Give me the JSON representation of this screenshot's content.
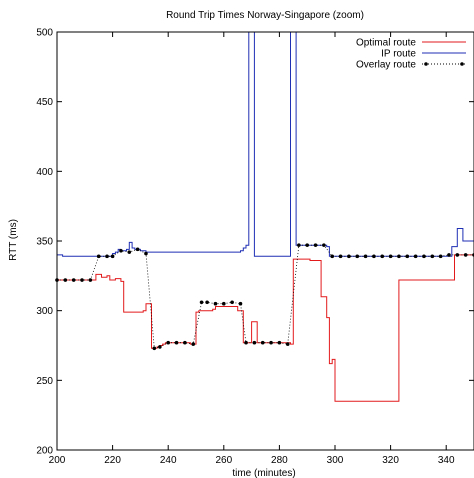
{
  "chart_data": {
    "type": "line",
    "title": "Round Trip Times Norway-Singapore (zoom)",
    "xlabel": "time (minutes)",
    "ylabel": "RTT (ms)",
    "xlim": [
      200,
      350
    ],
    "ylim": [
      200,
      500
    ],
    "xticks": [
      200,
      220,
      240,
      260,
      280,
      300,
      320,
      340
    ],
    "yticks": [
      200,
      250,
      300,
      350,
      400,
      450,
      500
    ],
    "grid": false,
    "legend_position": "top-right",
    "series": [
      {
        "name": "Optimal route",
        "color": "#e31a1c",
        "style": "solid",
        "x": [
          200,
          201,
          202,
          203,
          204,
          205,
          206,
          207,
          208,
          209,
          210,
          211,
          212,
          213,
          214,
          215,
          216,
          217,
          218,
          219,
          220,
          221,
          222,
          223,
          224,
          225,
          226,
          227,
          228,
          229,
          230,
          231,
          232,
          233,
          234,
          235,
          236,
          237,
          238,
          239,
          240,
          241,
          242,
          243,
          244,
          245,
          246,
          247,
          248,
          249,
          250,
          251,
          252,
          253,
          254,
          255,
          256,
          257,
          258,
          259,
          260,
          261,
          262,
          263,
          264,
          265,
          266,
          267,
          268,
          269,
          270,
          271,
          272,
          273,
          274,
          275,
          276,
          277,
          278,
          279,
          280,
          281,
          282,
          283,
          284,
          285,
          286,
          287,
          288,
          289,
          290,
          291,
          292,
          293,
          294,
          295,
          296,
          297,
          298,
          299,
          300,
          301,
          302,
          303,
          304,
          305,
          306,
          307,
          308,
          309,
          310,
          311,
          312,
          313,
          314,
          315,
          316,
          317,
          318,
          319,
          320,
          321,
          322,
          323,
          324,
          325,
          326,
          327,
          328,
          329,
          330,
          331,
          332,
          333,
          334,
          335,
          336,
          337,
          338,
          339,
          340,
          341,
          342,
          343,
          344,
          345,
          346,
          347,
          348,
          349,
          350
        ],
        "y": [
          322,
          322,
          322,
          322,
          322,
          322,
          322,
          322,
          322,
          322,
          322,
          322,
          322,
          322,
          326,
          326,
          324,
          324,
          325,
          322,
          322,
          323,
          323,
          321,
          299,
          299,
          299,
          299,
          299,
          299,
          299,
          300,
          305,
          305,
          273,
          273,
          274,
          275,
          276,
          277,
          277,
          277,
          277,
          277,
          277,
          277,
          277,
          277,
          276,
          276,
          299,
          300,
          300,
          300,
          300,
          300,
          301,
          303,
          303,
          303,
          303,
          303,
          303,
          303,
          303,
          300,
          300,
          277,
          277,
          277,
          292,
          292,
          277,
          277,
          277,
          277,
          277,
          277,
          277,
          277,
          277,
          277,
          277,
          277,
          276,
          337,
          337,
          337,
          337,
          337,
          337,
          336,
          336,
          336,
          336,
          310,
          310,
          295,
          262,
          265,
          235,
          235,
          235,
          235,
          235,
          235,
          235,
          235,
          235,
          235,
          235,
          235,
          235,
          235,
          235,
          235,
          235,
          235,
          235,
          235,
          235,
          235,
          235,
          322,
          322,
          322,
          322,
          322,
          322,
          322,
          322,
          322,
          322,
          322,
          322,
          322,
          322,
          322,
          322,
          322,
          322,
          322,
          322,
          340,
          340,
          340,
          340,
          340,
          340,
          340,
          340
        ]
      },
      {
        "name": "IP route",
        "color": "#1f2fb4",
        "style": "solid",
        "x": [
          200,
          201,
          202,
          203,
          204,
          205,
          206,
          207,
          208,
          209,
          210,
          211,
          212,
          213,
          214,
          215,
          216,
          217,
          218,
          219,
          220,
          221,
          222,
          223,
          224,
          225,
          226,
          227,
          228,
          229,
          230,
          231,
          232,
          233,
          234,
          235,
          236,
          237,
          238,
          239,
          240,
          241,
          242,
          243,
          244,
          245,
          246,
          247,
          248,
          249,
          250,
          251,
          252,
          253,
          254,
          255,
          256,
          257,
          258,
          259,
          260,
          261,
          262,
          263,
          264,
          265,
          266,
          267,
          268,
          269,
          270,
          271,
          272,
          273,
          274,
          275,
          276,
          277,
          278,
          279,
          280,
          281,
          282,
          283,
          284,
          285,
          286,
          287,
          288,
          289,
          290,
          291,
          292,
          293,
          294,
          295,
          296,
          297,
          298,
          299,
          300,
          301,
          302,
          303,
          304,
          305,
          306,
          307,
          308,
          309,
          310,
          311,
          312,
          313,
          314,
          315,
          316,
          317,
          318,
          319,
          320,
          321,
          322,
          323,
          324,
          325,
          326,
          327,
          328,
          329,
          330,
          331,
          332,
          333,
          334,
          335,
          336,
          337,
          338,
          339,
          340,
          341,
          342,
          343,
          344,
          345,
          346,
          347,
          348,
          349,
          350
        ],
        "y": [
          340,
          340,
          339,
          339,
          339,
          339,
          339,
          339,
          339,
          339,
          339,
          339,
          339,
          339,
          339,
          339,
          339,
          339,
          339,
          339,
          341,
          342,
          344,
          343,
          343,
          344,
          349,
          345,
          344,
          344,
          343,
          343,
          342,
          342,
          342,
          342,
          342,
          342,
          342,
          342,
          342,
          342,
          342,
          342,
          342,
          342,
          342,
          342,
          342,
          342,
          342,
          342,
          342,
          342,
          342,
          342,
          342,
          342,
          342,
          342,
          342,
          342,
          342,
          342,
          342,
          342,
          343,
          345,
          347,
          500,
          500,
          339,
          339,
          339,
          339,
          339,
          339,
          339,
          339,
          339,
          339,
          339,
          339,
          339,
          500,
          500,
          347,
          347,
          347,
          347,
          347,
          347,
          347,
          347,
          347,
          347,
          347,
          346,
          339,
          339,
          339,
          339,
          339,
          339,
          339,
          339,
          339,
          339,
          339,
          339,
          339,
          339,
          339,
          339,
          339,
          339,
          339,
          339,
          339,
          339,
          339,
          339,
          339,
          339,
          339,
          339,
          339,
          339,
          339,
          339,
          339,
          339,
          339,
          339,
          339,
          339,
          339,
          339,
          339,
          339,
          339,
          339,
          346,
          346,
          359,
          359,
          350,
          350,
          350,
          350,
          350
        ]
      },
      {
        "name": "Overlay route",
        "color": "#000000",
        "style": "dotted-markers",
        "x": [
          200,
          203,
          206,
          209,
          212,
          215,
          218,
          220,
          223,
          226,
          229,
          232,
          235,
          237,
          240,
          243,
          246,
          249,
          252,
          254,
          257,
          260,
          263,
          266,
          268,
          271,
          274,
          277,
          280,
          283,
          287,
          290,
          293,
          296,
          299,
          302,
          305,
          308,
          311,
          314,
          317,
          320,
          323,
          326,
          329,
          332,
          335,
          338,
          341,
          344,
          347,
          350
        ],
        "y": [
          322,
          322,
          322,
          322,
          322,
          339,
          339,
          339,
          343,
          342,
          344,
          341,
          273,
          274,
          277,
          277,
          277,
          276,
          306,
          306,
          305,
          305,
          306,
          305,
          277,
          277,
          277,
          277,
          277,
          276,
          347,
          347,
          347,
          347,
          339,
          339,
          339,
          339,
          339,
          339,
          339,
          339,
          339,
          339,
          339,
          339,
          339,
          339,
          340,
          340,
          340,
          340
        ]
      }
    ]
  }
}
